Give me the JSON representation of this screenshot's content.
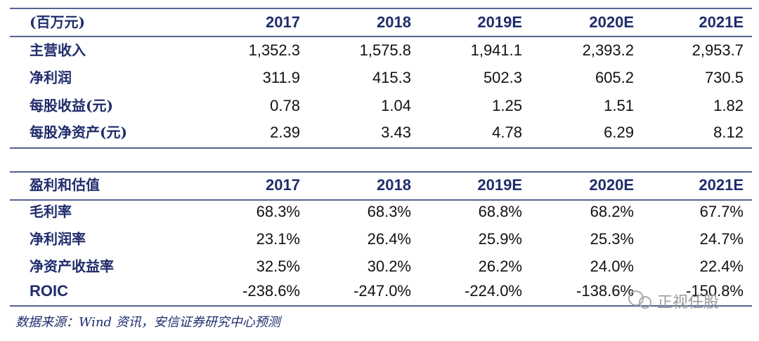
{
  "tables": [
    {
      "header": [
        "(百万元)",
        "2017",
        "2018",
        "2019E",
        "2020E",
        "2021E"
      ],
      "rows": [
        [
          "主营收入",
          "1,352.3",
          "1,575.8",
          "1,941.1",
          "2,393.2",
          "2,953.7"
        ],
        [
          "净利润",
          "311.9",
          "415.3",
          "502.3",
          "605.2",
          "730.5"
        ],
        [
          "每股收益(元)",
          "0.78",
          "1.04",
          "1.25",
          "1.51",
          "1.82"
        ],
        [
          "每股净资产(元)",
          "2.39",
          "3.43",
          "4.78",
          "6.29",
          "8.12"
        ]
      ]
    },
    {
      "header": [
        "盈利和估值",
        "2017",
        "2018",
        "2019E",
        "2020E",
        "2021E"
      ],
      "rows": [
        [
          "毛利率",
          "68.3%",
          "68.3%",
          "68.8%",
          "68.2%",
          "67.7%"
        ],
        [
          "净利润率",
          "23.1%",
          "26.4%",
          "25.9%",
          "25.3%",
          "24.7%"
        ],
        [
          "净资产收益率",
          "32.5%",
          "30.2%",
          "26.2%",
          "24.0%",
          "22.4%"
        ],
        [
          "ROIC",
          "-238.6%",
          "-247.0%",
          "-224.0%",
          "-138.6%",
          "-150.8%"
        ]
      ]
    }
  ],
  "source": "数据来源：Wind 资讯，安信证券研究中心预测",
  "watermark": "正视任股"
}
